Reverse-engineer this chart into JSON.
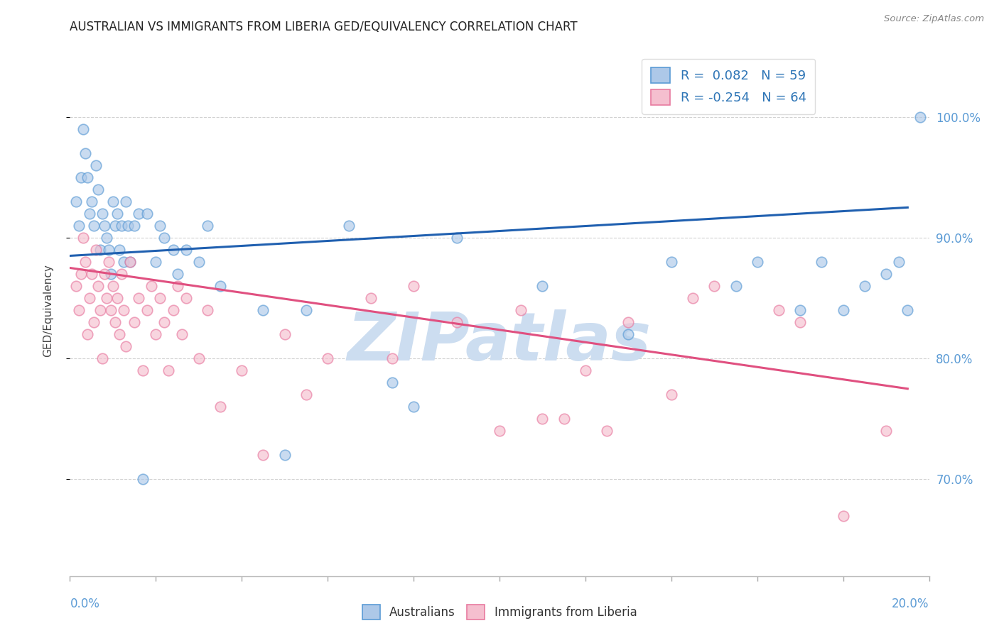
{
  "title": "AUSTRALIAN VS IMMIGRANTS FROM LIBERIA GED/EQUIVALENCY CORRELATION CHART",
  "source": "Source: ZipAtlas.com",
  "ylabel": "GED/Equivalency",
  "r_blue": 0.082,
  "n_blue": 59,
  "r_pink": -0.254,
  "n_pink": 64,
  "x_min": 0.0,
  "x_max": 20.0,
  "y_min": 62.0,
  "y_max": 106.0,
  "y_ticks": [
    70.0,
    80.0,
    90.0,
    100.0
  ],
  "y_tick_labels": [
    "70.0%",
    "80.0%",
    "90.0%",
    "100.0%"
  ],
  "blue_line_x": [
    0.0,
    19.5
  ],
  "blue_line_y": [
    88.5,
    92.5
  ],
  "pink_line_x": [
    0.0,
    19.5
  ],
  "pink_line_y": [
    87.5,
    77.5
  ],
  "blue_scatter_x": [
    0.15,
    0.2,
    0.25,
    0.3,
    0.35,
    0.4,
    0.45,
    0.5,
    0.55,
    0.6,
    0.65,
    0.7,
    0.75,
    0.8,
    0.85,
    0.9,
    0.95,
    1.0,
    1.05,
    1.1,
    1.15,
    1.2,
    1.25,
    1.3,
    1.35,
    1.4,
    1.5,
    1.6,
    1.7,
    1.8,
    2.0,
    2.1,
    2.2,
    2.4,
    2.5,
    2.7,
    3.0,
    3.2,
    3.5,
    4.5,
    5.0,
    5.5,
    6.5,
    7.5,
    8.0,
    9.0,
    11.0,
    13.0,
    14.0,
    15.5,
    16.0,
    17.0,
    17.5,
    18.0,
    18.5,
    19.0,
    19.3,
    19.5,
    19.8
  ],
  "blue_scatter_y": [
    93,
    91,
    95,
    99,
    97,
    95,
    92,
    93,
    91,
    96,
    94,
    89,
    92,
    91,
    90,
    89,
    87,
    93,
    91,
    92,
    89,
    91,
    88,
    93,
    91,
    88,
    91,
    92,
    70,
    92,
    88,
    91,
    90,
    89,
    87,
    89,
    88,
    91,
    86,
    84,
    72,
    84,
    91,
    78,
    76,
    90,
    86,
    82,
    88,
    86,
    88,
    84,
    88,
    84,
    86,
    87,
    88,
    84,
    100
  ],
  "pink_scatter_x": [
    0.15,
    0.2,
    0.25,
    0.3,
    0.35,
    0.4,
    0.45,
    0.5,
    0.55,
    0.6,
    0.65,
    0.7,
    0.75,
    0.8,
    0.85,
    0.9,
    0.95,
    1.0,
    1.05,
    1.1,
    1.15,
    1.2,
    1.25,
    1.3,
    1.4,
    1.5,
    1.6,
    1.7,
    1.8,
    1.9,
    2.0,
    2.1,
    2.2,
    2.3,
    2.4,
    2.5,
    2.6,
    2.7,
    3.0,
    3.2,
    3.5,
    4.0,
    4.5,
    5.0,
    5.5,
    6.0,
    7.0,
    7.5,
    8.0,
    9.0,
    10.0,
    11.0,
    12.0,
    13.0,
    14.5,
    15.0,
    16.5,
    17.0,
    18.0,
    19.0,
    10.5,
    14.0,
    11.5,
    12.5
  ],
  "pink_scatter_y": [
    86,
    84,
    87,
    90,
    88,
    82,
    85,
    87,
    83,
    89,
    86,
    84,
    80,
    87,
    85,
    88,
    84,
    86,
    83,
    85,
    82,
    87,
    84,
    81,
    88,
    83,
    85,
    79,
    84,
    86,
    82,
    85,
    83,
    79,
    84,
    86,
    82,
    85,
    80,
    84,
    76,
    79,
    72,
    82,
    77,
    80,
    85,
    80,
    86,
    83,
    74,
    75,
    79,
    83,
    85,
    86,
    84,
    83,
    67,
    74,
    84,
    77,
    75,
    74
  ],
  "blue_color": "#adc8e8",
  "blue_edge_color": "#5b9bd5",
  "pink_color": "#f5bfcf",
  "pink_edge_color": "#e87aa0",
  "blue_line_color": "#2060b0",
  "pink_line_color": "#e05080",
  "legend_r_color": "#2e75b6",
  "background_color": "#ffffff",
  "grid_color": "#cccccc",
  "watermark_color": "#ccddf0",
  "scatter_size": 110,
  "scatter_alpha": 0.65,
  "title_fontsize": 12,
  "axis_label_fontsize": 11,
  "tick_fontsize": 12,
  "legend_fontsize": 13
}
